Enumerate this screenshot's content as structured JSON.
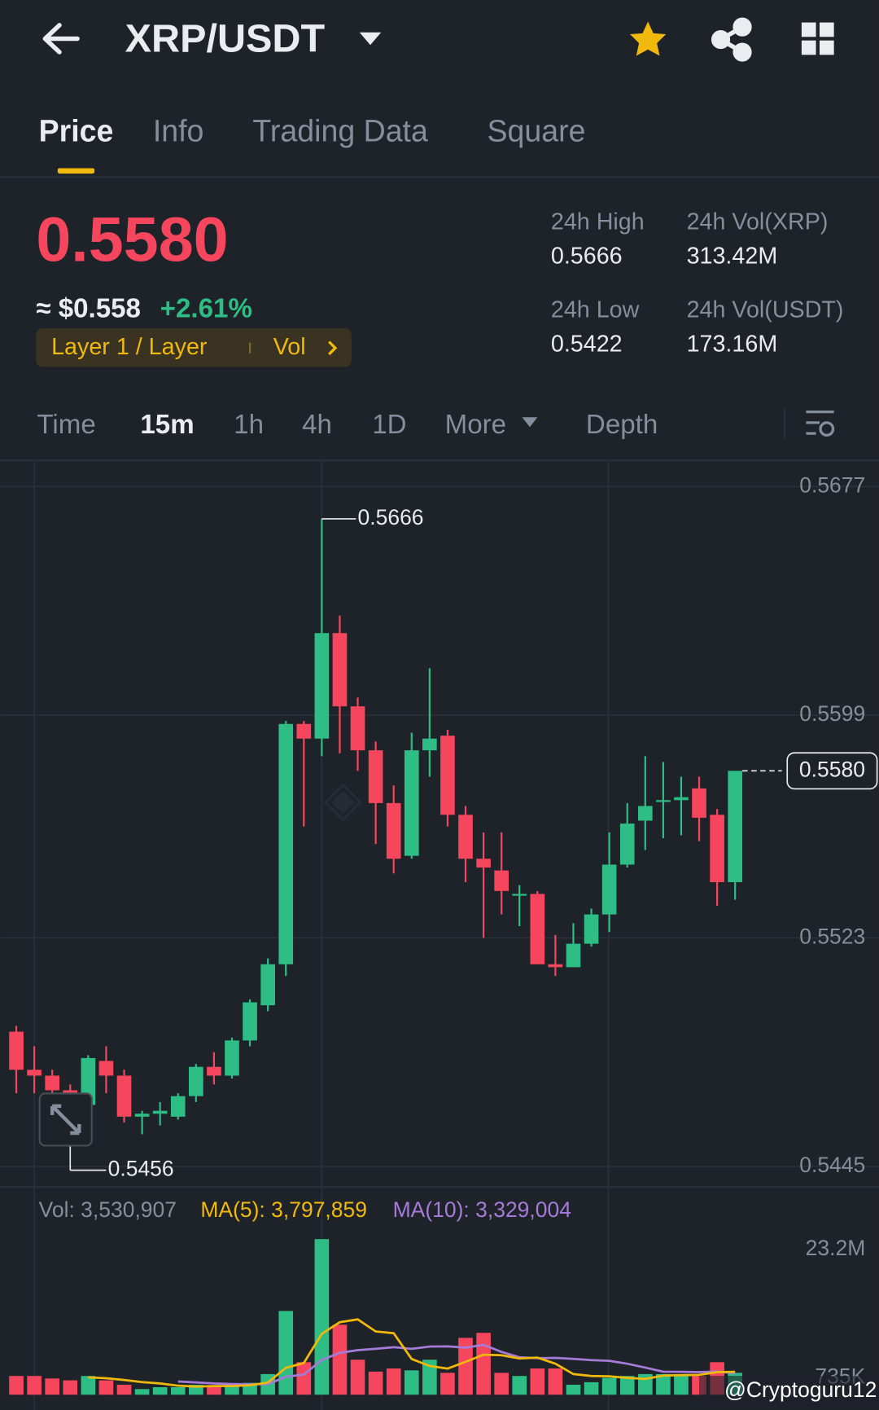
{
  "header": {
    "pair": "XRP/USDT"
  },
  "tabs": [
    "Price",
    "Info",
    "Trading Data",
    "Square"
  ],
  "price": {
    "last": "0.5580",
    "usd": "≈ $0.558",
    "change": "+2.61%",
    "tag": "Layer 1 / Layer",
    "vol": "Vol"
  },
  "stats": [
    {
      "label": "24h High",
      "value": "0.5666"
    },
    {
      "label": "24h Vol(XRP)",
      "value": "313.42M"
    },
    {
      "label": "24h Low",
      "value": "0.5422"
    },
    {
      "label": "24h Vol(USDT)",
      "value": "173.16M"
    }
  ],
  "intervals": [
    "Time",
    "15m",
    "1h",
    "4h",
    "1D",
    "More",
    "Depth"
  ],
  "chart_data": {
    "type": "candlestick",
    "open": [
      0.5491,
      0.5478,
      0.5476,
      0.5471,
      0.5466,
      0.5481,
      0.5476,
      0.5462,
      0.5463,
      0.5462,
      0.5469,
      0.5479,
      0.5476,
      0.5488,
      0.55,
      0.5514,
      0.5596,
      0.5591,
      0.5627,
      0.5602,
      0.5587,
      0.5569,
      0.5551,
      0.5587,
      0.5592,
      0.5565,
      0.555,
      0.5546,
      0.5538,
      0.5538,
      0.5514,
      0.5513,
      0.5521,
      0.5531,
      0.5548,
      0.5563,
      0.557,
      0.557,
      0.5574,
      0.5565,
      0.5542
    ],
    "high": [
      0.5493,
      0.5486,
      0.5478,
      0.5473,
      0.5483,
      0.5486,
      0.5478,
      0.5464,
      0.5467,
      0.547,
      0.548,
      0.5484,
      0.5489,
      0.5502,
      0.5516,
      0.5597,
      0.5597,
      0.5666,
      0.5633,
      0.5605,
      0.559,
      0.5575,
      0.5593,
      0.5615,
      0.5594,
      0.5568,
      0.5559,
      0.5559,
      0.5541,
      0.5539,
      0.5524,
      0.5528,
      0.5533,
      0.5559,
      0.5569,
      0.5585,
      0.5583,
      0.5578,
      0.5578,
      0.5567,
      0.558
    ],
    "low": [
      0.547,
      0.547,
      0.5468,
      0.5456,
      0.5463,
      0.547,
      0.546,
      0.5456,
      0.5459,
      0.5461,
      0.5467,
      0.5473,
      0.5475,
      0.5486,
      0.5498,
      0.551,
      0.5561,
      0.5585,
      0.5586,
      0.558,
      0.5555,
      0.5545,
      0.555,
      0.5578,
      0.5561,
      0.5542,
      0.5523,
      0.5531,
      0.5527,
      0.5514,
      0.551,
      0.5513,
      0.552,
      0.5525,
      0.5547,
      0.5553,
      0.5557,
      0.5558,
      0.5556,
      0.5534,
      0.5536
    ],
    "close": [
      0.5478,
      0.5476,
      0.5471,
      0.5466,
      0.5482,
      0.5476,
      0.5462,
      0.5463,
      0.5464,
      0.5469,
      0.5479,
      0.5476,
      0.5488,
      0.5501,
      0.5514,
      0.5596,
      0.5591,
      0.5627,
      0.5602,
      0.5587,
      0.5569,
      0.555,
      0.5587,
      0.5591,
      0.5565,
      0.555,
      0.5547,
      0.5539,
      0.5538,
      0.5514,
      0.5513,
      0.5521,
      0.5531,
      0.5548,
      0.5562,
      0.5568,
      0.557,
      0.5571,
      0.5564,
      0.5542,
      0.558
    ],
    "up_color": "#2ebd85",
    "down_color": "#f6465d",
    "ylim": [
      0.5438,
      0.5685
    ],
    "yticks": [
      0.5677,
      0.5599,
      0.5523,
      0.5445
    ],
    "grid": true,
    "max_label": 0.5666,
    "min_label": 0.5456,
    "last_price": {
      "value": 0.558,
      "label": "0.5580"
    }
  },
  "volume": {
    "label": "Vol: 3,530,907",
    "ma5_label": "MA(5): 3,797,859",
    "ma10_label": "MA(10): 3,329,004",
    "values": [
      3.0,
      3.0,
      2.6,
      2.3,
      3.0,
      2.3,
      1.6,
      0.9,
      1.2,
      1.2,
      1.6,
      1.3,
      1.6,
      1.9,
      3.3,
      13.4,
      5.2,
      24.9,
      11.2,
      5.6,
      3.7,
      4.2,
      3.9,
      5.6,
      3.5,
      9.1,
      9.9,
      3.5,
      3.0,
      4.2,
      4.2,
      1.6,
      2.0,
      2.7,
      3.0,
      3.3,
      3.3,
      3.3,
      3.0,
      5.2,
      3.5
    ],
    "ma5": [
      null,
      null,
      null,
      null,
      2.78,
      2.64,
      2.36,
      2.02,
      1.8,
      1.44,
      1.3,
      1.38,
      1.38,
      1.52,
      1.94,
      4.3,
      5.08,
      9.74,
      11.6,
      12.06,
      10.12,
      9.84,
      5.72,
      4.6,
      4.18,
      5.26,
      6.4,
      6.32,
      5.8,
      5.94,
      4.96,
      3.3,
      3.0,
      2.94,
      2.7,
      2.52,
      3.06,
      3.12,
      3.18,
      3.62,
      3.66
    ],
    "ma10": [
      null,
      null,
      null,
      null,
      null,
      null,
      null,
      null,
      null,
      2.11,
      1.97,
      1.8,
      1.7,
      1.66,
      1.69,
      2.87,
      3.23,
      5.56,
      6.7,
      7.14,
      7.35,
      7.61,
      7.34,
      7.71,
      7.73,
      7.52,
      7.99,
      6.85,
      5.99,
      5.85,
      5.9,
      5.73,
      5.54,
      5.42,
      4.96,
      4.34,
      3.68,
      3.66,
      3.61,
      3.71,
      3.44
    ],
    "ma5_color": "#f0b90b",
    "ma10_color": "#a57bd8",
    "ylim": [
      0,
      31.8
    ],
    "yticks": [
      {
        "value": 23.2,
        "label": "23.2M"
      },
      {
        "value": 0.735,
        "label": "735K"
      }
    ]
  },
  "watermark": "@Cryptoguru12"
}
